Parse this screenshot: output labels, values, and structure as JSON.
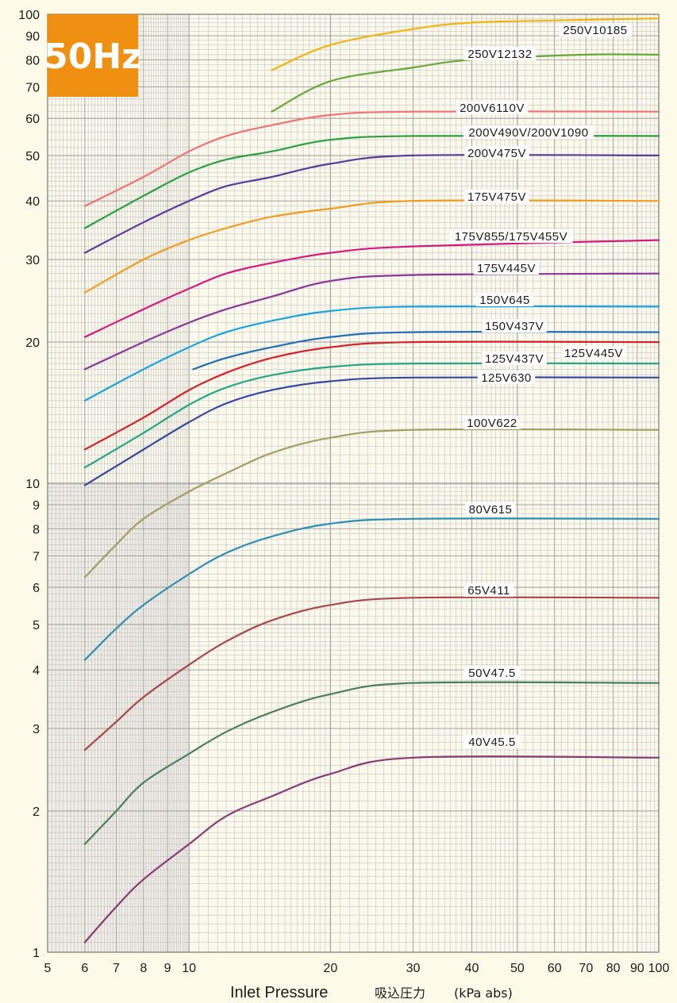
{
  "chart_data": {
    "type": "line",
    "title": "",
    "badge": "50Hz",
    "xlabel": "Inlet Pressure",
    "xlabel_jp": "吸込圧力",
    "xlabel_unit": "(kPa abs)",
    "ylabel": "",
    "xscale": "log",
    "yscale": "log",
    "xlim": [
      5,
      100
    ],
    "ylim": [
      1,
      100
    ],
    "grid": true,
    "x_ticks": [
      "5",
      "6",
      "7",
      "8",
      "9",
      "10",
      "20",
      "30",
      "40",
      "50",
      "60",
      "70",
      "80",
      "90",
      "100"
    ],
    "x_tick_values": [
      5,
      6,
      7,
      8,
      9,
      10,
      20,
      30,
      40,
      50,
      60,
      70,
      80,
      90,
      100
    ],
    "y_ticks": [
      "1",
      "2",
      "3",
      "4",
      "5",
      "6",
      "7",
      "8",
      "9",
      "10",
      "20",
      "30",
      "40",
      "50",
      "60",
      "70",
      "80",
      "90",
      "100"
    ],
    "y_tick_values": [
      1,
      2,
      3,
      4,
      5,
      6,
      7,
      8,
      9,
      10,
      20,
      30,
      40,
      50,
      60,
      70,
      80,
      90,
      100
    ],
    "series": [
      {
        "name": "250V10185",
        "color": "#f2b40f",
        "points": [
          [
            15,
            76
          ],
          [
            20,
            86
          ],
          [
            30,
            93
          ],
          [
            40,
            96
          ],
          [
            60,
            97
          ],
          [
            100,
            98
          ]
        ]
      },
      {
        "name": "250V12132",
        "color": "#6aa83a",
        "points": [
          [
            15,
            62
          ],
          [
            20,
            72
          ],
          [
            30,
            77
          ],
          [
            40,
            80
          ],
          [
            70,
            82
          ],
          [
            100,
            82
          ]
        ]
      },
      {
        "name": "200V6110V",
        "color": "#f07373",
        "points": [
          [
            6,
            39
          ],
          [
            8,
            45
          ],
          [
            10,
            51
          ],
          [
            12,
            55
          ],
          [
            15,
            58
          ],
          [
            20,
            61
          ],
          [
            30,
            62
          ],
          [
            100,
            62
          ]
        ]
      },
      {
        "name": "200V490V/200V1090",
        "color": "#2aa142",
        "points": [
          [
            6,
            35
          ],
          [
            8,
            41
          ],
          [
            10,
            46
          ],
          [
            12,
            49
          ],
          [
            15,
            51
          ],
          [
            20,
            54
          ],
          [
            30,
            55
          ],
          [
            100,
            55
          ]
        ]
      },
      {
        "name": "200V475V",
        "color": "#5b3b99",
        "points": [
          [
            6,
            31
          ],
          [
            8,
            36
          ],
          [
            10,
            40
          ],
          [
            12,
            43
          ],
          [
            15,
            45
          ],
          [
            20,
            48
          ],
          [
            30,
            50
          ],
          [
            100,
            50
          ]
        ]
      },
      {
        "name": "175V475V",
        "color": "#f29d1f",
        "points": [
          [
            6,
            25.5
          ],
          [
            8,
            30
          ],
          [
            10,
            33
          ],
          [
            12,
            35
          ],
          [
            15,
            37
          ],
          [
            20,
            38.5
          ],
          [
            30,
            40
          ],
          [
            100,
            40
          ]
        ]
      },
      {
        "name": "175V855/175V455V",
        "color": "#d6197e",
        "points": [
          [
            6,
            20.5
          ],
          [
            8,
            23.5
          ],
          [
            10,
            26
          ],
          [
            12,
            28
          ],
          [
            15,
            29.5
          ],
          [
            20,
            31
          ],
          [
            30,
            32
          ],
          [
            100,
            33
          ]
        ]
      },
      {
        "name": "175V445V",
        "color": "#8b3799",
        "points": [
          [
            6,
            17.5
          ],
          [
            8,
            20
          ],
          [
            10,
            22
          ],
          [
            12,
            23.5
          ],
          [
            15,
            25
          ],
          [
            20,
            27
          ],
          [
            30,
            27.8
          ],
          [
            100,
            28
          ]
        ]
      },
      {
        "name": "150V645",
        "color": "#1ba4dd",
        "points": [
          [
            6,
            15
          ],
          [
            8,
            17.5
          ],
          [
            10,
            19.5
          ],
          [
            12,
            21
          ],
          [
            15,
            22.2
          ],
          [
            20,
            23.3
          ],
          [
            30,
            23.8
          ],
          [
            100,
            23.8
          ]
        ]
      },
      {
        "name": "150V437V",
        "color": "#1f6eb5",
        "points": [
          [
            10.2,
            17.5
          ],
          [
            12,
            18.5
          ],
          [
            15,
            19.5
          ],
          [
            20,
            20.5
          ],
          [
            30,
            21
          ],
          [
            100,
            21
          ]
        ]
      },
      {
        "name": "125V437V",
        "color": "#d3222a",
        "points": [
          [
            6,
            11.8
          ],
          [
            8,
            13.8
          ],
          [
            10,
            15.8
          ],
          [
            12,
            17.2
          ],
          [
            15,
            18.5
          ],
          [
            20,
            19.5
          ],
          [
            30,
            20
          ],
          [
            100,
            20
          ]
        ]
      },
      {
        "name": "125V445V",
        "color": "#25a685",
        "points": [
          [
            6,
            10.8
          ],
          [
            8,
            12.8
          ],
          [
            10,
            14.7
          ],
          [
            12,
            16
          ],
          [
            15,
            17
          ],
          [
            20,
            17.7
          ],
          [
            30,
            18
          ],
          [
            100,
            18
          ]
        ]
      },
      {
        "name": "125V630",
        "color": "#354a9f",
        "points": [
          [
            6,
            9.9
          ],
          [
            8,
            11.8
          ],
          [
            10,
            13.5
          ],
          [
            12,
            14.8
          ],
          [
            15,
            15.8
          ],
          [
            20,
            16.5
          ],
          [
            30,
            16.8
          ],
          [
            100,
            16.8
          ]
        ]
      },
      {
        "name": "100V622",
        "color": "#a39e62",
        "points": [
          [
            6,
            6.3
          ],
          [
            7,
            7.4
          ],
          [
            8,
            8.4
          ],
          [
            10,
            9.6
          ],
          [
            12,
            10.5
          ],
          [
            15,
            11.6
          ],
          [
            20,
            12.5
          ],
          [
            30,
            13
          ],
          [
            100,
            13
          ]
        ]
      },
      {
        "name": "80V615",
        "color": "#2e8fb5",
        "points": [
          [
            6,
            4.2
          ],
          [
            7,
            4.9
          ],
          [
            8,
            5.5
          ],
          [
            10,
            6.4
          ],
          [
            12,
            7.1
          ],
          [
            15,
            7.7
          ],
          [
            20,
            8.2
          ],
          [
            30,
            8.4
          ],
          [
            100,
            8.4
          ]
        ]
      },
      {
        "name": "65V411",
        "color": "#a84649",
        "points": [
          [
            6,
            2.7
          ],
          [
            7,
            3.1
          ],
          [
            8,
            3.5
          ],
          [
            10,
            4.1
          ],
          [
            12,
            4.6
          ],
          [
            15,
            5.1
          ],
          [
            20,
            5.5
          ],
          [
            30,
            5.7
          ],
          [
            100,
            5.7
          ]
        ]
      },
      {
        "name": "50V47.5",
        "color": "#4a7f5b",
        "points": [
          [
            6,
            1.7
          ],
          [
            7,
            2.0
          ],
          [
            8,
            2.3
          ],
          [
            10,
            2.65
          ],
          [
            12,
            2.95
          ],
          [
            15,
            3.25
          ],
          [
            20,
            3.55
          ],
          [
            30,
            3.75
          ],
          [
            100,
            3.75
          ]
        ]
      },
      {
        "name": "40V45.5",
        "color": "#883c72",
        "points": [
          [
            6,
            1.05
          ],
          [
            7,
            1.25
          ],
          [
            8,
            1.43
          ],
          [
            10,
            1.7
          ],
          [
            12,
            1.95
          ],
          [
            15,
            2.15
          ],
          [
            20,
            2.4
          ],
          [
            30,
            2.6
          ],
          [
            100,
            2.6
          ]
        ]
      }
    ]
  }
}
